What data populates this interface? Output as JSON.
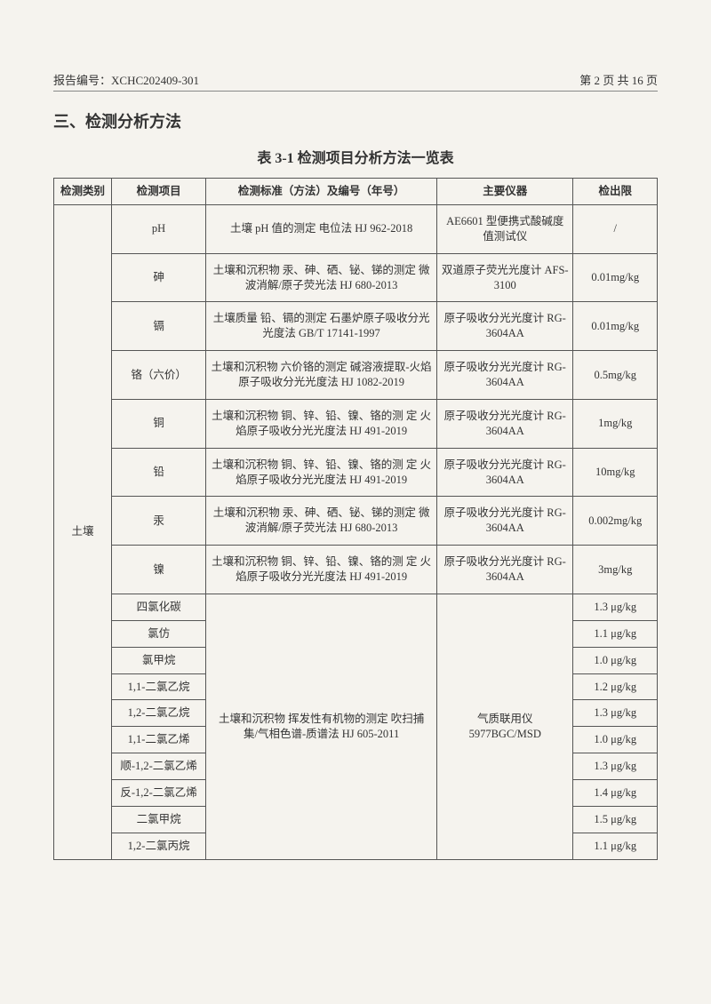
{
  "header": {
    "report_no_label": "报告编号：",
    "report_no": "XCHC202409-301",
    "page_info": "第 2 页 共 16 页"
  },
  "section_title": "三、检测分析方法",
  "table_caption": "表 3-1 检测项目分析方法一览表",
  "columns": {
    "category": "检测类别",
    "item": "检测项目",
    "method": "检测标准（方法）及编号（年号）",
    "instrument": "主要仪器",
    "limit": "检出限"
  },
  "body": {
    "category_label": "土壤",
    "category_rowspan": 18,
    "top_rows": [
      {
        "item": "pH",
        "method": "土壤 pH 值的测定 电位法 HJ 962-2018",
        "instrument": "AE6601 型便携式酸碱度值测试仪",
        "limit": "/"
      },
      {
        "item": "砷",
        "method": "土壤和沉积物 汞、砷、硒、铋、锑的测定 微波消解/原子荧光法 HJ 680-2013",
        "instrument": "双道原子荧光光度计 AFS-3100",
        "limit": "0.01mg/kg"
      },
      {
        "item": "镉",
        "method": "土壤质量 铅、镉的测定 石墨炉原子吸收分光光度法 GB/T 17141-1997",
        "instrument": "原子吸收分光光度计 RG-3604AA",
        "limit": "0.01mg/kg"
      },
      {
        "item": "铬（六价）",
        "method": "土壤和沉积物 六价铬的测定 碱溶液提取-火焰原子吸收分光光度法 HJ 1082-2019",
        "instrument": "原子吸收分光光度计 RG-3604AA",
        "limit": "0.5mg/kg"
      },
      {
        "item": "铜",
        "method": "土壤和沉积物 铜、锌、铅、镍、铬的测 定 火焰原子吸收分光光度法 HJ 491-2019",
        "instrument": "原子吸收分光光度计 RG-3604AA",
        "limit": "1mg/kg"
      },
      {
        "item": "铅",
        "method": "土壤和沉积物 铜、锌、铅、镍、铬的测 定 火焰原子吸收分光光度法 HJ 491-2019",
        "instrument": "原子吸收分光光度计 RG-3604AA",
        "limit": "10mg/kg"
      },
      {
        "item": "汞",
        "method": "土壤和沉积物 汞、砷、硒、铋、锑的测定 微波消解/原子荧光法 HJ 680-2013",
        "instrument": "原子吸收分光光度计 RG-3604AA",
        "limit": "0.002mg/kg"
      },
      {
        "item": "镍",
        "method": "土壤和沉积物 铜、锌、铅、镍、铬的测 定 火焰原子吸收分光光度法 HJ 491-2019",
        "instrument": "原子吸收分光光度计 RG-3604AA",
        "limit": "3mg/kg"
      }
    ],
    "merged_block": {
      "method": "土壤和沉积物 挥发性有机物的测定 吹扫捕集/气相色谱-质谱法 HJ 605-2011",
      "instrument": "气质联用仪 5977BGC/MSD",
      "rowspan": 10,
      "items": [
        {
          "item": "四氯化碳",
          "limit": "1.3 μg/kg"
        },
        {
          "item": "氯仿",
          "limit": "1.1 μg/kg"
        },
        {
          "item": "氯甲烷",
          "limit": "1.0 μg/kg"
        },
        {
          "item": "1,1-二氯乙烷",
          "limit": "1.2 μg/kg"
        },
        {
          "item": "1,2-二氯乙烷",
          "limit": "1.3 μg/kg"
        },
        {
          "item": "1,1-二氯乙烯",
          "limit": "1.0 μg/kg"
        },
        {
          "item": "顺-1,2-二氯乙烯",
          "limit": "1.3 μg/kg"
        },
        {
          "item": "反-1,2-二氯乙烯",
          "limit": "1.4 μg/kg"
        },
        {
          "item": "二氯甲烷",
          "limit": "1.5 μg/kg"
        },
        {
          "item": "1,2-二氯丙烷",
          "limit": "1.1 μg/kg"
        }
      ]
    }
  }
}
